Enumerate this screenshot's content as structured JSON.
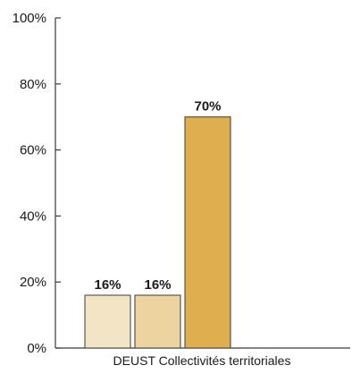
{
  "chart_data": {
    "type": "bar",
    "categories": [
      "DEUST Collectivités territoriales"
    ],
    "series": [
      {
        "values": [
          16
        ],
        "color": "#f3e4c6",
        "data_label": "16%"
      },
      {
        "values": [
          16
        ],
        "color": "#ecd3a0",
        "data_label": "16%"
      },
      {
        "values": [
          70
        ],
        "color": "#ddaf4e",
        "data_label": "70%"
      }
    ],
    "ylim": [
      0,
      100
    ],
    "yticks": [
      {
        "value": 0,
        "label": "0%"
      },
      {
        "value": 20,
        "label": "20%"
      },
      {
        "value": 40,
        "label": "40%"
      },
      {
        "value": 60,
        "label": "60%"
      },
      {
        "value": 80,
        "label": "80%"
      },
      {
        "value": 100,
        "label": "100%"
      }
    ],
    "title": "",
    "xlabel": "",
    "ylabel": "",
    "grid": false,
    "bar_border_color": "#3a3a3a",
    "axis_color": "#3a3a3a"
  }
}
